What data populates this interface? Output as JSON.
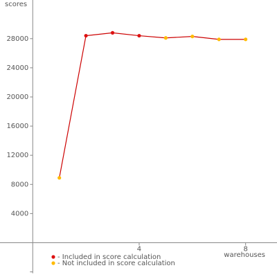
{
  "chart_data": {
    "type": "line",
    "y_label": "scores",
    "x_label": "warehouses",
    "x": [
      1,
      2,
      3,
      4,
      5,
      6,
      7,
      8
    ],
    "line_color": "#cc0000",
    "series": [
      {
        "name": "- Included in score calculation",
        "color": "#dd1111",
        "values": [
          null,
          28400,
          28800,
          28400,
          null,
          null,
          null,
          null
        ]
      },
      {
        "name": "- Not included in score calculation",
        "color": "#ffbb00",
        "values": [
          8900,
          null,
          null,
          null,
          28100,
          28300,
          27900,
          27900
        ]
      }
    ],
    "xlim": [
      -1.23,
      9.18
    ],
    "xticks": [
      4,
      8
    ],
    "ylim": [
      -4000,
      33300
    ],
    "yticks": [
      4000,
      8000,
      12000,
      16000,
      20000,
      24000,
      28000
    ],
    "grid": false
  }
}
